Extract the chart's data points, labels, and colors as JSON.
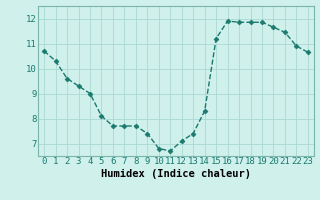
{
  "x": [
    0,
    1,
    2,
    3,
    4,
    5,
    6,
    7,
    8,
    9,
    10,
    11,
    12,
    13,
    14,
    15,
    16,
    17,
    18,
    19,
    20,
    21,
    22,
    23
  ],
  "y": [
    10.7,
    10.3,
    9.6,
    9.3,
    9.0,
    8.1,
    7.7,
    7.7,
    7.7,
    7.4,
    6.8,
    6.7,
    7.1,
    7.4,
    8.3,
    11.2,
    11.9,
    11.85,
    11.85,
    11.85,
    11.65,
    11.45,
    10.9,
    10.65
  ],
  "line_color": "#1a7a6e",
  "marker": "D",
  "marker_size": 2.5,
  "bg_color": "#cff0eb",
  "grid_color": "#aad8d2",
  "xlabel": "Humidex (Indice chaleur)",
  "ylim": [
    6.5,
    12.5
  ],
  "xlim": [
    -0.5,
    23.5
  ],
  "yticks": [
    7,
    8,
    9,
    10,
    11,
    12
  ],
  "xticks": [
    0,
    1,
    2,
    3,
    4,
    5,
    6,
    7,
    8,
    9,
    10,
    11,
    12,
    13,
    14,
    15,
    16,
    17,
    18,
    19,
    20,
    21,
    22,
    23
  ],
  "xtick_labels": [
    "0",
    "1",
    "2",
    "3",
    "4",
    "5",
    "6",
    "7",
    "8",
    "9",
    "10",
    "11",
    "12",
    "13",
    "14",
    "15",
    "16",
    "17",
    "18",
    "19",
    "20",
    "21",
    "22",
    "23"
  ],
  "xlabel_fontsize": 7.5,
  "tick_fontsize": 6.5,
  "line_width": 1.0
}
